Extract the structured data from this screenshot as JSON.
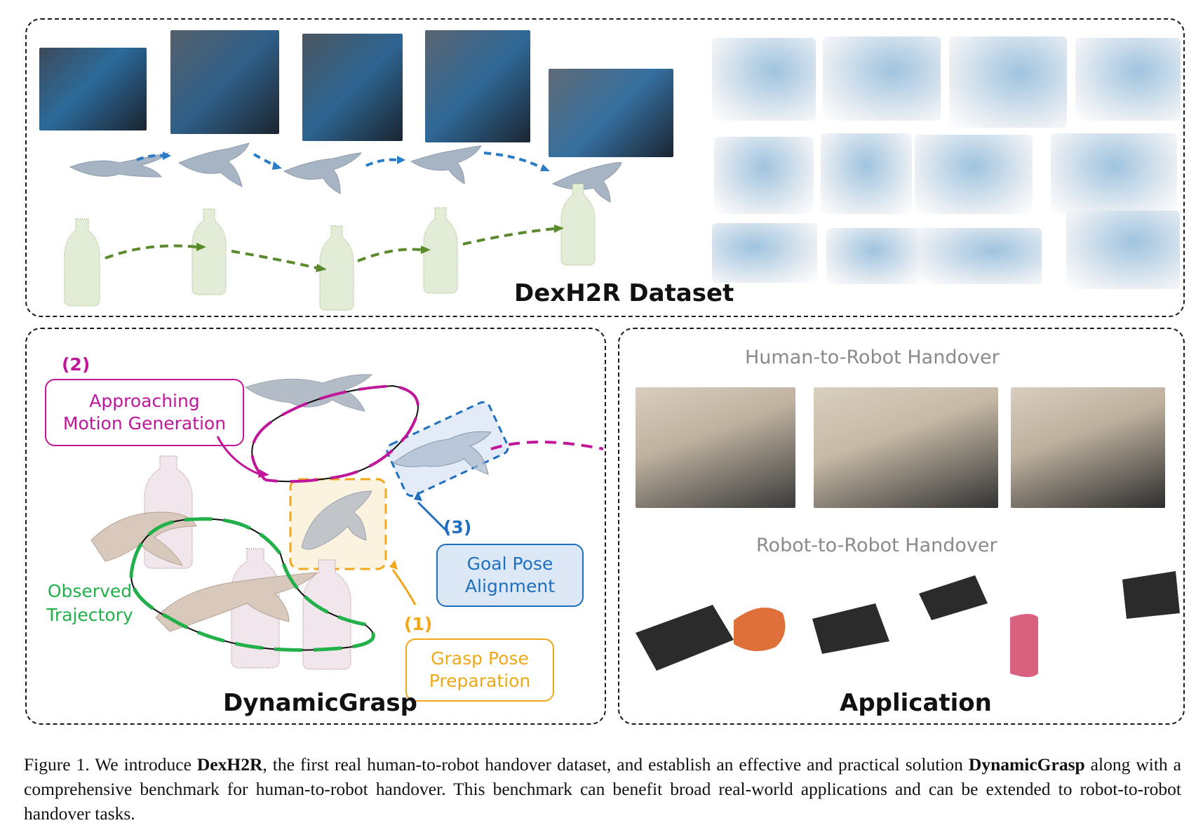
{
  "figure": {
    "top_panel": {
      "title": "DexH2R Dataset"
    },
    "bottom_left_panel": {
      "title": "DynamicGrasp",
      "stages": [
        {
          "number": "(2)",
          "label": "Approaching\nMotion Generation",
          "color": "#c0169a"
        },
        {
          "number": "(3)",
          "label": "Goal Pose\nAlignment",
          "color": "#1f6fc0"
        },
        {
          "number": "(1)",
          "label": "Grasp Pose\nPreparation",
          "color": "#f0a81a"
        }
      ],
      "trajectory_label": "Observed\nTrajectory",
      "trajectory_color": "#22b04a"
    },
    "bottom_right_panel": {
      "title": "Application",
      "section_1": "Human-to-Robot Handover",
      "section_2": "Robot-to-Robot Handover"
    },
    "caption": {
      "prefix": "Figure 1. We introduce ",
      "bold_1": "DexH2R",
      "middle": ", the first real human-to-robot handover dataset, and establish an effective and practical solution ",
      "bold_2": "DynamicGrasp",
      "suffix": " along with a comprehensive benchmark for human-to-robot handover. This benchmark can benefit broad real-world applications and can be extended to robot-to-robot handover tasks."
    }
  }
}
